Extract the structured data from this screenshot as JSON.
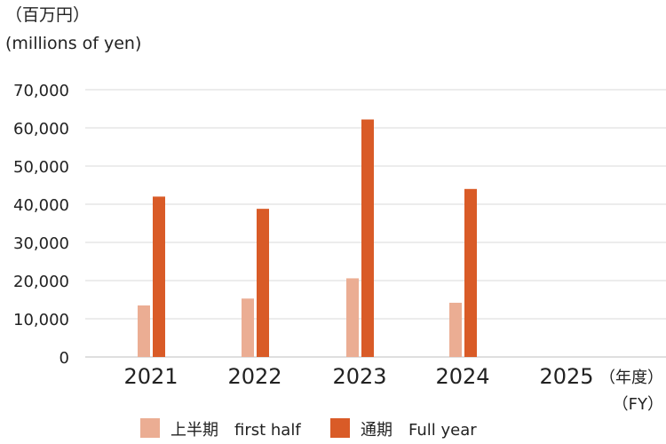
{
  "colors": {
    "first_half": "#EBAD93",
    "full_year": "#D95B27",
    "grid": "#D9D9D9",
    "text": "#222222"
  },
  "chart_data": {
    "type": "bar",
    "title": "",
    "unit_label_ja": "（百万円）",
    "unit_label_en": "(millions of yen)",
    "xlabel_ja": "（年度）",
    "xlabel_en": "（FY）",
    "categories": [
      "2021",
      "2022",
      "2023",
      "2024",
      "2025"
    ],
    "ylim": [
      0,
      70000
    ],
    "yticks": [
      0,
      10000,
      20000,
      30000,
      40000,
      50000,
      60000,
      70000
    ],
    "ytick_labels": [
      "0",
      "10,000",
      "20,000",
      "30,000",
      "40,000",
      "50,000",
      "60,000",
      "70,000"
    ],
    "grid": true,
    "legend_position": "bottom",
    "series": [
      {
        "key": "first_half",
        "name": "上半期　first half",
        "values": [
          13500,
          15300,
          20600,
          14200,
          null
        ]
      },
      {
        "key": "full_year",
        "name": "通期　Full year",
        "values": [
          42000,
          38800,
          62200,
          44000,
          null
        ]
      }
    ]
  }
}
